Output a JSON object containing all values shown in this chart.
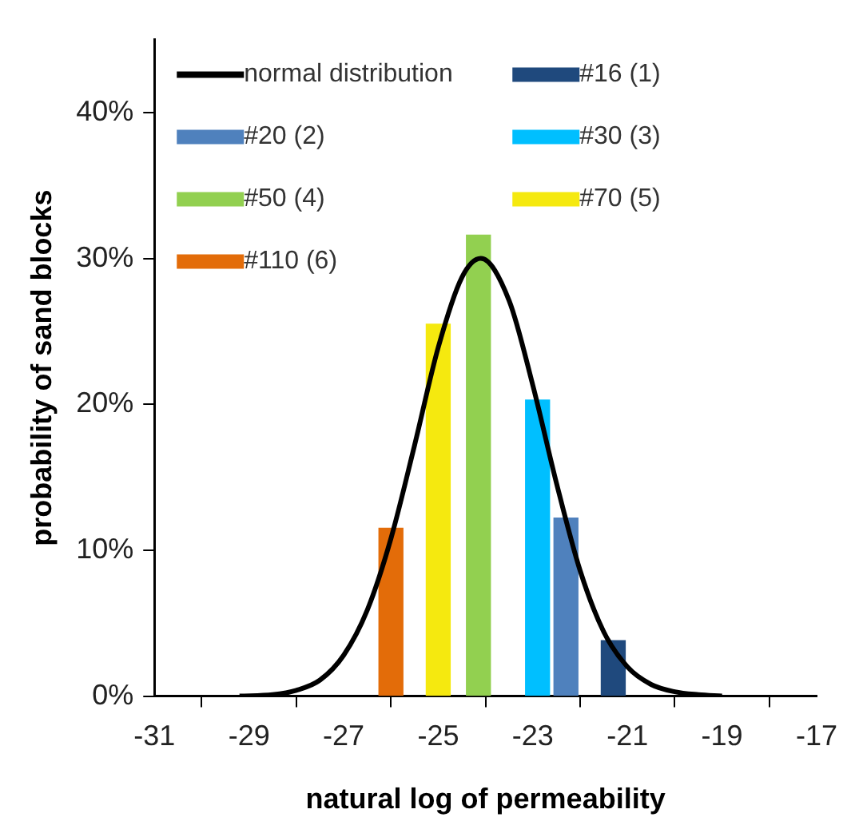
{
  "chart_data": {
    "type": "bar",
    "xlabel": "natural log of permeability",
    "ylabel": "probability of sand blocks",
    "xlim": [
      -31,
      -17
    ],
    "xticks": [
      -31,
      -29,
      -27,
      -25,
      -23,
      -21,
      -19,
      -17
    ],
    "ylim": [
      0,
      0.45
    ],
    "yticks": [
      {
        "value": 0,
        "label": "0%"
      },
      {
        "value": 0.1,
        "label": "10%"
      },
      {
        "value": 0.2,
        "label": "20%"
      },
      {
        "value": 0.3,
        "label": "30%"
      },
      {
        "value": 0.4,
        "label": "40%"
      }
    ],
    "grid": false,
    "legend": "top left",
    "marker": "none",
    "line_style": "solid",
    "series": [
      {
        "name": "normal distribution",
        "type": "line",
        "color": "#000000",
        "x": [
          -29.2,
          -28.5,
          -28,
          -27.5,
          -27,
          -26.5,
          -26,
          -25.5,
          -25,
          -24.5,
          -24.1,
          -23.5,
          -23,
          -22.5,
          -22,
          -21.5,
          -21,
          -20.5,
          -20,
          -19.5,
          -19
        ],
        "values": [
          0,
          0.001,
          0.004,
          0.011,
          0.028,
          0.059,
          0.108,
          0.172,
          0.239,
          0.287,
          0.3,
          0.271,
          0.213,
          0.146,
          0.086,
          0.044,
          0.02,
          0.008,
          0.003,
          0.001,
          0
        ]
      },
      {
        "name": "#16 (1)",
        "color": "#1f497d",
        "x": [
          -21.3
        ],
        "values": [
          0.038
        ]
      },
      {
        "name": "#20 (2)",
        "color": "#4f81bd",
        "x": [
          -22.3
        ],
        "values": [
          0.122
        ]
      },
      {
        "name": "#30 (3)",
        "color": "#00bfff",
        "x": [
          -22.9
        ],
        "values": [
          0.203
        ]
      },
      {
        "name": "#50 (4)",
        "color": "#92d050",
        "x": [
          -24.15
        ],
        "values": [
          0.316
        ]
      },
      {
        "name": "#70 (5)",
        "color": "#f5e90f",
        "x": [
          -25
        ],
        "values": [
          0.255
        ]
      },
      {
        "name": "#110 (6)",
        "color": "#e36c09",
        "x": [
          -26
        ],
        "values": [
          0.115
        ]
      }
    ]
  }
}
